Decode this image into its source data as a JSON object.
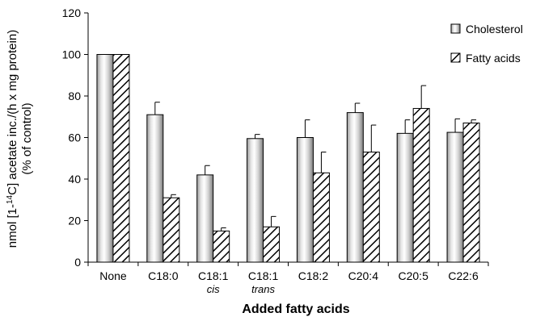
{
  "chart_data": {
    "type": "bar",
    "xlabel": "Added fatty acids",
    "ylabel_line1_pre": "nmol [1-",
    "ylabel_line1_sup": "14",
    "ylabel_line1_post": "C] acetate inc./(h x mg protein)",
    "ylabel_line2": "(% of control)",
    "ylim": [
      0,
      120
    ],
    "yticks": [
      "0",
      "20",
      "40",
      "60",
      "80",
      "100",
      "120"
    ],
    "categories": [
      {
        "label": "None",
        "sub": ""
      },
      {
        "label": "C18:0",
        "sub": ""
      },
      {
        "label": "C18:1",
        "sub": "cis"
      },
      {
        "label": "C18:1",
        "sub": "trans"
      },
      {
        "label": "C18:2",
        "sub": ""
      },
      {
        "label": "C20:4",
        "sub": ""
      },
      {
        "label": "C20:5",
        "sub": ""
      },
      {
        "label": "C22:6",
        "sub": ""
      }
    ],
    "series": [
      {
        "name": "Cholesterol",
        "fill": "gradient",
        "values": [
          100,
          71,
          42,
          59.5,
          60,
          72,
          62,
          62.5
        ],
        "errors": [
          0,
          6,
          4.5,
          2,
          8.5,
          4.5,
          6.5,
          6.5
        ]
      },
      {
        "name": "Fatty acids",
        "fill": "hatch",
        "values": [
          100,
          31,
          15,
          17,
          43,
          53,
          74,
          67
        ],
        "errors": [
          0,
          1.5,
          1.5,
          5,
          10,
          13,
          11,
          1.5
        ]
      }
    ],
    "legend_position": "top-right",
    "grid": false,
    "colors": {
      "bar_light": "#ffffff",
      "bar_dark": "#8a8a8a",
      "axis": "#000000"
    }
  }
}
